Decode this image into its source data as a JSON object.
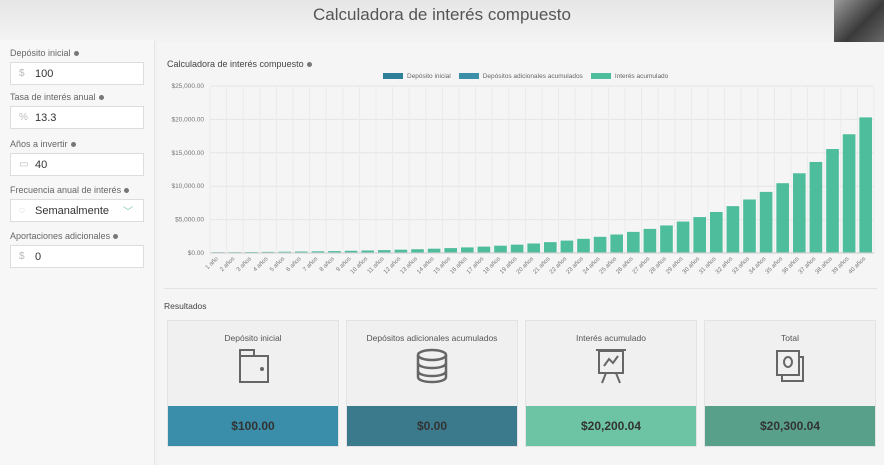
{
  "header": {
    "title": "Calculadora de interés compuesto"
  },
  "form": {
    "deposit": {
      "label": "Depósito inicial",
      "prefix": "$",
      "value": "100"
    },
    "rate": {
      "label": "Tasa de interés anual",
      "prefix": "%",
      "value": "13.3"
    },
    "years": {
      "label": "Años a invertir",
      "prefix": "calendar-icon",
      "value": "40"
    },
    "frequency": {
      "label": "Frecuencia anual de interés",
      "prefix": "clock-icon",
      "value": "Semanalmente"
    },
    "additional": {
      "label": "Aportaciones adicionales",
      "prefix": "$",
      "value": "0"
    }
  },
  "colors": {
    "deposit": "#2e7f99",
    "additional": "#3b8fa8",
    "interest": "#4dbd9c"
  },
  "chart_data": {
    "type": "bar",
    "stacked": true,
    "title": "Calculadora de interés compuesto",
    "categories": [
      "1 año",
      "2 años",
      "3 años",
      "4 años",
      "5 años",
      "6 años",
      "7 años",
      "8 años",
      "9 años",
      "10 años",
      "11 años",
      "12 años",
      "13 años",
      "14 años",
      "15 años",
      "16 años",
      "17 años",
      "18 años",
      "19 años",
      "20 años",
      "21 años",
      "22 años",
      "23 años",
      "24 años",
      "25 años",
      "26 años",
      "27 años",
      "28 años",
      "29 años",
      "30 años",
      "31 años",
      "32 años",
      "33 años",
      "34 años",
      "35 años",
      "36 años",
      "37 años",
      "38 años",
      "39 años",
      "40 años"
    ],
    "series": [
      {
        "name": "Depósito inicial",
        "values": [
          100,
          100,
          100,
          100,
          100,
          100,
          100,
          100,
          100,
          100,
          100,
          100,
          100,
          100,
          100,
          100,
          100,
          100,
          100,
          100,
          100,
          100,
          100,
          100,
          100,
          100,
          100,
          100,
          100,
          100,
          100,
          100,
          100,
          100,
          100,
          100,
          100,
          100,
          100,
          100
        ]
      },
      {
        "name": "Depósitos adicionales acumulados",
        "values": [
          0,
          0,
          0,
          0,
          0,
          0,
          0,
          0,
          0,
          0,
          0,
          0,
          0,
          0,
          0,
          0,
          0,
          0,
          0,
          0,
          0,
          0,
          0,
          0,
          0,
          0,
          0,
          0,
          0,
          0,
          0,
          0,
          0,
          0,
          0,
          0,
          0,
          0,
          0,
          0
        ]
      },
      {
        "name": "Interés acumulado",
        "values": [
          14,
          30,
          49,
          70,
          94,
          122,
          153,
          189,
          231,
          277,
          331,
          392,
          462,
          542,
          633,
          738,
          857,
          992,
          1148,
          1325,
          1527,
          1758,
          2022,
          2324,
          2668,
          3062,
          3511,
          4024,
          4609,
          5278,
          6042,
          6915,
          7911,
          9050,
          10349,
          11834,
          13529,
          15465,
          17676,
          20200
        ]
      }
    ],
    "yticks": [
      "$0.00",
      "$5,000.00",
      "$10,000.00",
      "$15,000.00",
      "$20,000.00",
      "$25,000.00"
    ],
    "ylim": [
      0,
      25000
    ],
    "legend": "top"
  },
  "results": {
    "label": "Resultados",
    "cards": [
      {
        "title": "Depósito inicial",
        "value": "$100.00",
        "icon": "wallet-icon",
        "color": "#3a8ea9"
      },
      {
        "title": "Depósitos adicionales acumulados",
        "value": "$0.00",
        "icon": "coins-icon",
        "color": "#3a7a8c"
      },
      {
        "title": "Interés acumulado",
        "value": "$20,200.04",
        "icon": "presentation-chart-icon",
        "color": "#6cc4a4"
      },
      {
        "title": "Total",
        "value": "$20,300.04",
        "icon": "money-bill-icon",
        "color": "#58a08a"
      }
    ]
  }
}
